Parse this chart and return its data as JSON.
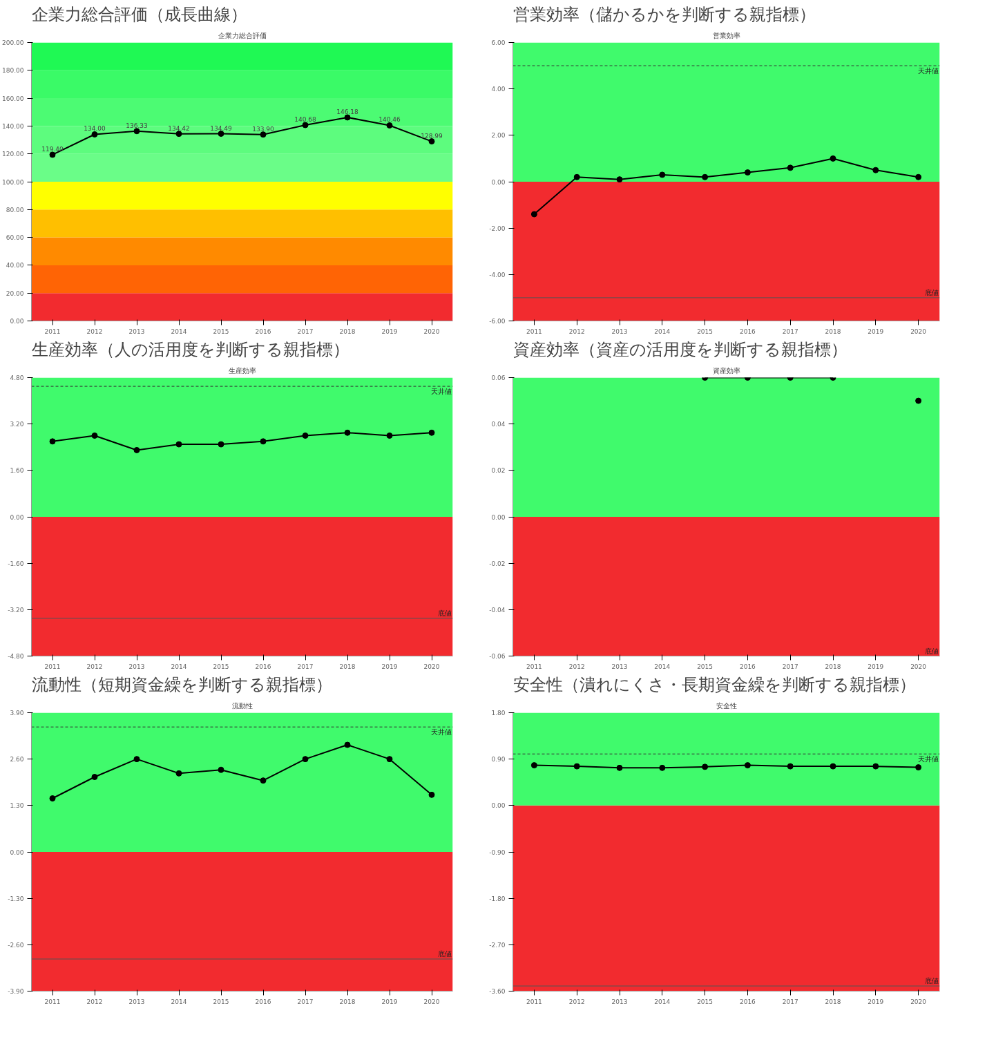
{
  "chart_data": [
    {
      "type": "line",
      "title": "企業力総合評価（成長曲線）",
      "subtitle": "企業力総合評価",
      "categories": [
        "2011",
        "2012",
        "2013",
        "2014",
        "2015",
        "2016",
        "2017",
        "2018",
        "2019",
        "2020"
      ],
      "series": [
        {
          "color": "#000000",
          "values": [
            119.4,
            134.0,
            136.33,
            134.42,
            134.49,
            133.9,
            140.68,
            146.18,
            140.46,
            128.99
          ]
        }
      ],
      "value_labels": [
        "119.40",
        "134.00",
        "136.33",
        "134.42",
        "134.49",
        "133.90",
        "140.68",
        "146.18",
        "140.46",
        "128.99"
      ],
      "ylim": [
        0,
        200
      ],
      "yticks": [
        {
          "value": 0,
          "label": "0.00"
        },
        {
          "value": 20,
          "label": "20.00"
        },
        {
          "value": 40,
          "label": "40.00"
        },
        {
          "value": 60,
          "label": "60.00"
        },
        {
          "value": 80,
          "label": "80.00"
        },
        {
          "value": 100,
          "label": "100.00"
        },
        {
          "value": 120,
          "label": "120.00"
        },
        {
          "value": 140,
          "label": "140.00"
        },
        {
          "value": 160,
          "label": "160.00"
        },
        {
          "value": 180,
          "label": "180.00"
        },
        {
          "value": 200,
          "label": "200.00"
        }
      ],
      "bands": [
        {
          "axis": "y",
          "from": 0,
          "to": 20,
          "color": "#f22b2f"
        },
        {
          "axis": "y",
          "from": 20,
          "to": 40,
          "color": "#ff6405"
        },
        {
          "axis": "y",
          "from": 40,
          "to": 60,
          "color": "#ff8a00"
        },
        {
          "axis": "y",
          "from": 60,
          "to": 80,
          "color": "#ffbf00"
        },
        {
          "axis": "y",
          "from": 80,
          "to": 100,
          "color": "#ffff00"
        },
        {
          "axis": "y",
          "from": 100,
          "to": 120,
          "color": "#6afd88"
        },
        {
          "axis": "y",
          "from": 120,
          "to": 140,
          "color": "#5dfc7e"
        },
        {
          "axis": "y",
          "from": 140,
          "to": 160,
          "color": "#4cfb73"
        },
        {
          "axis": "y",
          "from": 160,
          "to": 180,
          "color": "#3afa67"
        },
        {
          "axis": "y",
          "from": 180,
          "to": 200,
          "color": "#1ff954"
        }
      ],
      "marker": "circle",
      "line_style": "solid"
    },
    {
      "type": "line",
      "title": "営業効率（儲かるかを判断する親指標）",
      "subtitle": "営業効率",
      "categories": [
        "2011",
        "2012",
        "2013",
        "2014",
        "2015",
        "2016",
        "2017",
        "2018",
        "2019",
        "2020"
      ],
      "series": [
        {
          "color": "#000000",
          "values": [
            -1.4,
            0.2,
            0.1,
            0.3,
            0.2,
            0.4,
            0.6,
            1.0,
            0.5,
            0.2
          ]
        }
      ],
      "ylim": [
        -6,
        6
      ],
      "yticks": [
        {
          "value": -6,
          "label": "-6.00"
        },
        {
          "value": -4,
          "label": "-4.00"
        },
        {
          "value": -2,
          "label": "-2.00"
        },
        {
          "value": 0,
          "label": "0.00"
        },
        {
          "value": 2,
          "label": "2.00"
        },
        {
          "value": 4,
          "label": "4.00"
        },
        {
          "value": 6,
          "label": "6.00"
        }
      ],
      "bands": [
        {
          "axis": "y",
          "from": -6,
          "to": 0,
          "color": "#f22b2f"
        },
        {
          "axis": "y",
          "from": 0,
          "to": 6,
          "color": "#40fa6c"
        }
      ],
      "ref_lines": [
        {
          "axis": "y",
          "value": 5,
          "label": "天井値",
          "line_style": "dashed",
          "color": "#333333"
        },
        {
          "axis": "y",
          "value": -5,
          "label": "底値",
          "line_style": "solid",
          "color": "#555555"
        }
      ],
      "marker": "circle",
      "line_style": "solid"
    },
    {
      "type": "line",
      "title": "生産効率（人の活用度を判断する親指標）",
      "subtitle": "生産効率",
      "categories": [
        "2011",
        "2012",
        "2013",
        "2014",
        "2015",
        "2016",
        "2017",
        "2018",
        "2019",
        "2020"
      ],
      "series": [
        {
          "color": "#000000",
          "values": [
            2.6,
            2.8,
            2.3,
            2.5,
            2.5,
            2.6,
            2.8,
            2.9,
            2.8,
            2.9
          ]
        }
      ],
      "ylim": [
        -4.8,
        4.8
      ],
      "yticks": [
        {
          "value": -4.8,
          "label": "-4.80"
        },
        {
          "value": -3.2,
          "label": "-3.20"
        },
        {
          "value": -1.6,
          "label": "-1.60"
        },
        {
          "value": 0,
          "label": "0.00"
        },
        {
          "value": 1.6,
          "label": "1.60"
        },
        {
          "value": 3.2,
          "label": "3.20"
        },
        {
          "value": 4.8,
          "label": "4.80"
        }
      ],
      "bands": [
        {
          "axis": "y",
          "from": -4.8,
          "to": 0,
          "color": "#f22b2f"
        },
        {
          "axis": "y",
          "from": 0,
          "to": 4.8,
          "color": "#40fa6c"
        }
      ],
      "ref_lines": [
        {
          "axis": "y",
          "value": 4.5,
          "label": "天井値",
          "line_style": "dashed",
          "color": "#333333"
        },
        {
          "axis": "y",
          "value": -3.5,
          "label": "底値",
          "line_style": "solid",
          "color": "#555555"
        }
      ],
      "marker": "circle",
      "line_style": "solid"
    },
    {
      "type": "line",
      "title": "資産効率（資産の活用度を判断する親指標）",
      "subtitle": "資産効率",
      "categories": [
        "2011",
        "2012",
        "2013",
        "2014",
        "2015",
        "2016",
        "2017",
        "2018",
        "2019",
        "2020"
      ],
      "series": [
        {
          "color": "#000000",
          "values": [
            null,
            null,
            null,
            null,
            0.06,
            0.06,
            0.06,
            0.06,
            null,
            0.05
          ]
        }
      ],
      "ylim": [
        -0.06,
        0.06
      ],
      "yticks": [
        {
          "value": -0.06,
          "label": "-0.06"
        },
        {
          "value": -0.04,
          "label": "-0.04"
        },
        {
          "value": -0.02,
          "label": "-0.02"
        },
        {
          "value": 0,
          "label": "0.00"
        },
        {
          "value": 0.02,
          "label": "0.02"
        },
        {
          "value": 0.04,
          "label": "0.04"
        },
        {
          "value": 0.06,
          "label": "0.06"
        }
      ],
      "bands": [
        {
          "axis": "y",
          "from": -0.06,
          "to": 0,
          "color": "#f22b2f"
        },
        {
          "axis": "y",
          "from": 0,
          "to": 0.06,
          "color": "#40fa6c"
        }
      ],
      "ref_lines": [
        {
          "axis": "y",
          "value": -0.06,
          "label": "底値",
          "line_style": "dashed",
          "color": "#555555"
        }
      ],
      "marker": "circle",
      "line_style": "solid"
    },
    {
      "type": "line",
      "title": "流動性（短期資金繰を判断する親指標）",
      "subtitle": "流動性",
      "categories": [
        "2011",
        "2012",
        "2013",
        "2014",
        "2015",
        "2016",
        "2017",
        "2018",
        "2019",
        "2020"
      ],
      "series": [
        {
          "color": "#000000",
          "values": [
            1.5,
            2.1,
            2.6,
            2.2,
            2.3,
            2.0,
            2.6,
            3.0,
            2.6,
            1.6
          ]
        }
      ],
      "ylim": [
        -3.9,
        3.9
      ],
      "yticks": [
        {
          "value": -3.9,
          "label": "-3.90"
        },
        {
          "value": -2.6,
          "label": "-2.60"
        },
        {
          "value": -1.3,
          "label": "-1.30"
        },
        {
          "value": 0,
          "label": "0.00"
        },
        {
          "value": 1.3,
          "label": "1.30"
        },
        {
          "value": 2.6,
          "label": "2.60"
        },
        {
          "value": 3.9,
          "label": "3.90"
        }
      ],
      "bands": [
        {
          "axis": "y",
          "from": -3.9,
          "to": 0,
          "color": "#f22b2f"
        },
        {
          "axis": "y",
          "from": 0,
          "to": 3.9,
          "color": "#40fa6c"
        }
      ],
      "ref_lines": [
        {
          "axis": "y",
          "value": 3.5,
          "label": "天井値",
          "line_style": "dashed",
          "color": "#333333"
        },
        {
          "axis": "y",
          "value": -3.0,
          "label": "底値",
          "line_style": "solid",
          "color": "#555555"
        }
      ],
      "marker": "circle",
      "line_style": "solid"
    },
    {
      "type": "line",
      "title": "安全性（潰れにくさ・長期資金繰を判断する親指標）",
      "subtitle": "安全性",
      "categories": [
        "2011",
        "2012",
        "2013",
        "2014",
        "2015",
        "2016",
        "2017",
        "2018",
        "2019",
        "2020"
      ],
      "series": [
        {
          "color": "#000000",
          "values": [
            0.78,
            0.76,
            0.73,
            0.73,
            0.75,
            0.78,
            0.76,
            0.76,
            0.76,
            0.74
          ]
        }
      ],
      "ylim": [
        -3.6,
        1.8
      ],
      "yticks": [
        {
          "value": -3.6,
          "label": "-3.60"
        },
        {
          "value": -2.7,
          "label": "-2.70"
        },
        {
          "value": -1.8,
          "label": "-1.80"
        },
        {
          "value": -0.9,
          "label": "-0.90"
        },
        {
          "value": 0,
          "label": "0.00"
        },
        {
          "value": 0.9,
          "label": "0.90"
        },
        {
          "value": 1.8,
          "label": "1.80"
        }
      ],
      "bands": [
        {
          "axis": "y",
          "from": -3.6,
          "to": 0,
          "color": "#f22b2f"
        },
        {
          "axis": "y",
          "from": 0,
          "to": 1.8,
          "color": "#40fa6c"
        }
      ],
      "ref_lines": [
        {
          "axis": "y",
          "value": 1.0,
          "label": "天井値",
          "line_style": "dashed",
          "color": "#333333"
        },
        {
          "axis": "y",
          "value": -3.5,
          "label": "底値",
          "line_style": "solid",
          "color": "#555555"
        }
      ],
      "marker": "circle",
      "line_style": "solid"
    }
  ]
}
